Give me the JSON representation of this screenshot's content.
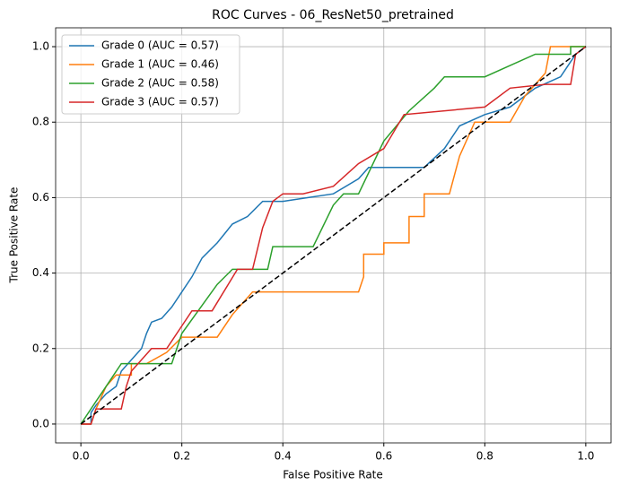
{
  "chart_data": {
    "type": "line",
    "title": "ROC Curves - 06_ResNet50_pretrained",
    "x_label": "False Positive Rate",
    "y_label": "True Positive Rate",
    "xlim": [
      -0.05,
      1.05
    ],
    "ylim": [
      -0.05,
      1.05
    ],
    "xticks": [
      {
        "value": 0,
        "label": "0.0"
      },
      {
        "value": 0.2,
        "label": "0.2"
      },
      {
        "value": 0.4,
        "label": "0.4"
      },
      {
        "value": 0.6,
        "label": "0.6"
      },
      {
        "value": 0.8,
        "label": "0.8"
      },
      {
        "value": 1,
        "label": "1.0"
      }
    ],
    "yticks": [
      {
        "value": 0,
        "label": "0.0"
      },
      {
        "value": 0.2,
        "label": "0.2"
      },
      {
        "value": 0.4,
        "label": "0.4"
      },
      {
        "value": 0.6,
        "label": "0.6"
      },
      {
        "value": 0.8,
        "label": "0.8"
      },
      {
        "value": 1,
        "label": "1.0"
      }
    ],
    "grid": true,
    "legend": "upper-left",
    "series": [
      {
        "name": "Grade 0 (AUC = 0.57)",
        "color": "#1f77b4",
        "x": [
          0,
          0.02,
          0.02,
          0.03,
          0.05,
          0.07,
          0.08,
          0.1,
          0.12,
          0.13,
          0.14,
          0.16,
          0.18,
          0.2,
          0.22,
          0.24,
          0.27,
          0.3,
          0.33,
          0.36,
          0.4,
          0.45,
          0.5,
          0.55,
          0.57,
          0.68,
          0.72,
          0.75,
          0.8,
          0.85,
          0.9,
          0.95,
          0.98,
          1
        ],
        "values": [
          0,
          0,
          0.03,
          0.05,
          0.08,
          0.1,
          0.14,
          0.17,
          0.2,
          0.24,
          0.27,
          0.28,
          0.31,
          0.35,
          0.39,
          0.44,
          0.48,
          0.53,
          0.55,
          0.59,
          0.59,
          0.6,
          0.61,
          0.65,
          0.68,
          0.68,
          0.73,
          0.79,
          0.82,
          0.84,
          0.89,
          0.92,
          0.98,
          1
        ]
      },
      {
        "name": "Grade 1 (AUC = 0.46)",
        "color": "#ff7f0e",
        "x": [
          0,
          0.02,
          0.03,
          0.05,
          0.07,
          0.1,
          0.1,
          0.13,
          0.17,
          0.2,
          0.27,
          0.3,
          0.34,
          0.55,
          0.56,
          0.56,
          0.6,
          0.6,
          0.65,
          0.65,
          0.68,
          0.68,
          0.73,
          0.75,
          0.78,
          0.85,
          0.88,
          0.92,
          0.93,
          1
        ],
        "values": [
          0,
          0,
          0.04,
          0.1,
          0.13,
          0.13,
          0.16,
          0.16,
          0.19,
          0.23,
          0.23,
          0.29,
          0.35,
          0.35,
          0.39,
          0.45,
          0.45,
          0.48,
          0.48,
          0.55,
          0.55,
          0.61,
          0.61,
          0.71,
          0.8,
          0.8,
          0.87,
          0.93,
          1,
          1
        ]
      },
      {
        "name": "Grade 2 (AUC = 0.58)",
        "color": "#2ca02c",
        "x": [
          0,
          0.03,
          0.05,
          0.08,
          0.14,
          0.18,
          0.2,
          0.27,
          0.3,
          0.37,
          0.38,
          0.46,
          0.5,
          0.52,
          0.55,
          0.6,
          0.65,
          0.7,
          0.72,
          0.8,
          0.85,
          0.9,
          0.97,
          0.97,
          1
        ],
        "values": [
          0,
          0.06,
          0.1,
          0.16,
          0.16,
          0.16,
          0.24,
          0.37,
          0.41,
          0.41,
          0.47,
          0.47,
          0.58,
          0.61,
          0.61,
          0.75,
          0.83,
          0.89,
          0.92,
          0.92,
          0.95,
          0.98,
          0.98,
          1,
          1
        ]
      },
      {
        "name": "Grade 3 (AUC = 0.57)",
        "color": "#d62728",
        "x": [
          0,
          0.02,
          0.03,
          0.08,
          0.09,
          0.1,
          0.14,
          0.17,
          0.2,
          0.22,
          0.26,
          0.31,
          0.34,
          0.36,
          0.38,
          0.4,
          0.44,
          0.5,
          0.55,
          0.6,
          0.64,
          0.8,
          0.85,
          0.92,
          0.97,
          0.98,
          1
        ],
        "values": [
          0,
          0,
          0.04,
          0.04,
          0.1,
          0.14,
          0.2,
          0.2,
          0.26,
          0.3,
          0.3,
          0.41,
          0.41,
          0.52,
          0.59,
          0.61,
          0.61,
          0.63,
          0.69,
          0.73,
          0.82,
          0.84,
          0.89,
          0.9,
          0.9,
          0.98,
          1
        ]
      }
    ],
    "reference_line": {
      "x": [
        0,
        1
      ],
      "values": [
        0,
        1
      ],
      "color": "#000000",
      "dashed": true
    }
  }
}
